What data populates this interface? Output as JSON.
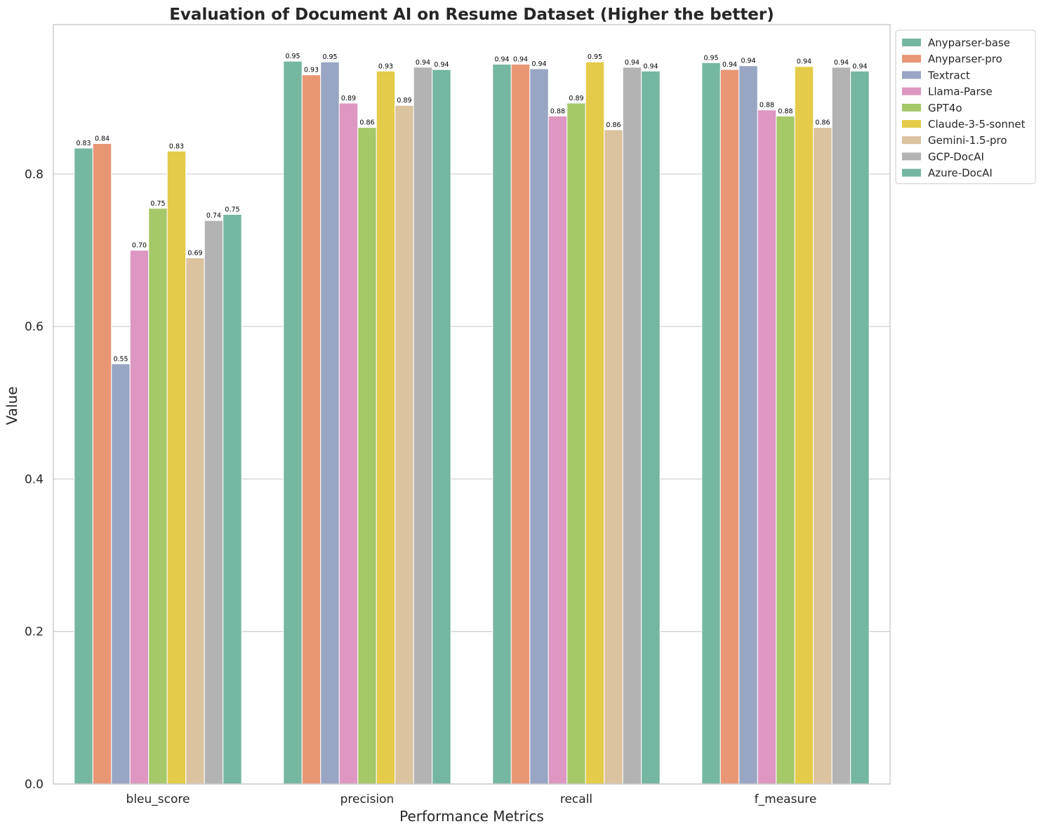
{
  "chart_data": {
    "type": "bar",
    "title": "Evaluation of Document AI on Resume Dataset (Higher the better)",
    "xlabel": "Performance Metrics",
    "ylabel": "Value",
    "ylim": [
      0,
      0.996
    ],
    "yticks": [
      0.0,
      0.2,
      0.4,
      0.6,
      0.8
    ],
    "ytick_labels": [
      "0.0",
      "0.2",
      "0.4",
      "0.6",
      "0.8"
    ],
    "grid": "horizontal",
    "legend_position": "outside-top-right",
    "categories": [
      "bleu_score",
      "precision",
      "recall",
      "f_measure"
    ],
    "series": [
      {
        "name": "Anyparser-base",
        "color": "#76b7a2",
        "values": [
          0.834,
          0.948,
          0.944,
          0.946
        ],
        "labels": [
          "0.83",
          "0.95",
          "0.94",
          "0.95"
        ]
      },
      {
        "name": "Anyparser-pro",
        "color": "#e99675",
        "values": [
          0.84,
          0.93,
          0.944,
          0.937
        ],
        "labels": [
          "0.84",
          "0.93",
          "0.94",
          "0.94"
        ]
      },
      {
        "name": "Textract",
        "color": "#98a6c4",
        "values": [
          0.551,
          0.947,
          0.938,
          0.942
        ],
        "labels": [
          "0.55",
          "0.95",
          "0.94",
          "0.94"
        ]
      },
      {
        "name": "Llama-Parse",
        "color": "#dd97c2",
        "values": [
          0.7,
          0.893,
          0.876,
          0.884
        ],
        "labels": [
          "0.70",
          "0.89",
          "0.88",
          "0.88"
        ]
      },
      {
        "name": "GPT4o",
        "color": "#a5c868",
        "values": [
          0.755,
          0.861,
          0.893,
          0.876
        ],
        "labels": [
          "0.75",
          "0.86",
          "0.89",
          "0.88"
        ]
      },
      {
        "name": "Claude-3-5-sonnet",
        "color": "#e4cb49",
        "values": [
          0.83,
          0.935,
          0.947,
          0.941
        ],
        "labels": [
          "0.83",
          "0.93",
          "0.95",
          "0.94"
        ]
      },
      {
        "name": "Gemini-1.5-pro",
        "color": "#dbc3a0",
        "values": [
          0.69,
          0.89,
          0.858,
          0.861
        ],
        "labels": [
          "0.69",
          "0.89",
          "0.86",
          "0.86"
        ]
      },
      {
        "name": "GCP-DocAI",
        "color": "#b3b3b3",
        "values": [
          0.739,
          0.94,
          0.94,
          0.94
        ],
        "labels": [
          "0.74",
          "0.94",
          "0.94",
          "0.94"
        ]
      },
      {
        "name": "Azure-DocAI",
        "color": "#74b6a1",
        "values": [
          0.747,
          0.937,
          0.935,
          0.935
        ],
        "labels": [
          "0.75",
          "0.94",
          "0.94",
          "0.94"
        ]
      }
    ]
  }
}
